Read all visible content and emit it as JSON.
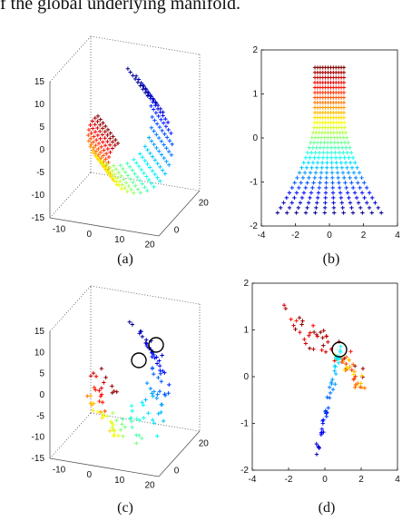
{
  "top_text": "f the global underlying manifold.",
  "chart_data": [
    {
      "type": "scatter",
      "panel": "(a)",
      "label": "(a)",
      "projection": "3d",
      "z_ticks": [
        "15",
        "10",
        "5",
        "0",
        "-5",
        "-10",
        "-15"
      ],
      "x_ticks": [
        "-10",
        "0",
        "10",
        "20"
      ],
      "y_ticks": [
        "20",
        "0"
      ],
      "description_shape": "swiss-roll",
      "series": [
        {
          "values": []
        }
      ]
    },
    {
      "type": "scatter",
      "panel": "(b)",
      "label": "(b)",
      "x_ticks": [
        "-4",
        "-2",
        "0",
        "2",
        "4"
      ],
      "y_ticks": [
        "2",
        "1",
        "0",
        "-1",
        "-2"
      ],
      "xlim": [
        -4,
        4
      ],
      "ylim": [
        -2,
        2
      ],
      "series": [
        {
          "values": []
        }
      ]
    },
    {
      "type": "scatter",
      "panel": "(c)",
      "label": "(c)",
      "projection": "3d",
      "z_ticks": [
        "15",
        "10",
        "5",
        "0",
        "-5",
        "-10",
        "-15"
      ],
      "x_ticks": [
        "-10",
        "0",
        "10",
        "20"
      ],
      "y_ticks": [
        "20",
        "0"
      ],
      "series": [
        {
          "values": []
        }
      ]
    },
    {
      "type": "scatter",
      "panel": "(d)",
      "label": "(d)",
      "x_ticks": [
        "-4",
        "-2",
        "0",
        "2",
        "4"
      ],
      "y_ticks": [
        "2",
        "1",
        "0",
        "-1",
        "-2"
      ],
      "xlim": [
        -4,
        4
      ],
      "ylim": [
        -2,
        2
      ],
      "series": [
        {
          "values": []
        }
      ]
    }
  ],
  "colors": {
    "jet": [
      "#00008f",
      "#0000ff",
      "#0080ff",
      "#00ffff",
      "#80ff80",
      "#ffff00",
      "#ff8000",
      "#ff0000",
      "#800000"
    ],
    "axis": "#111111",
    "box": "#555555",
    "circle": "#000000"
  }
}
